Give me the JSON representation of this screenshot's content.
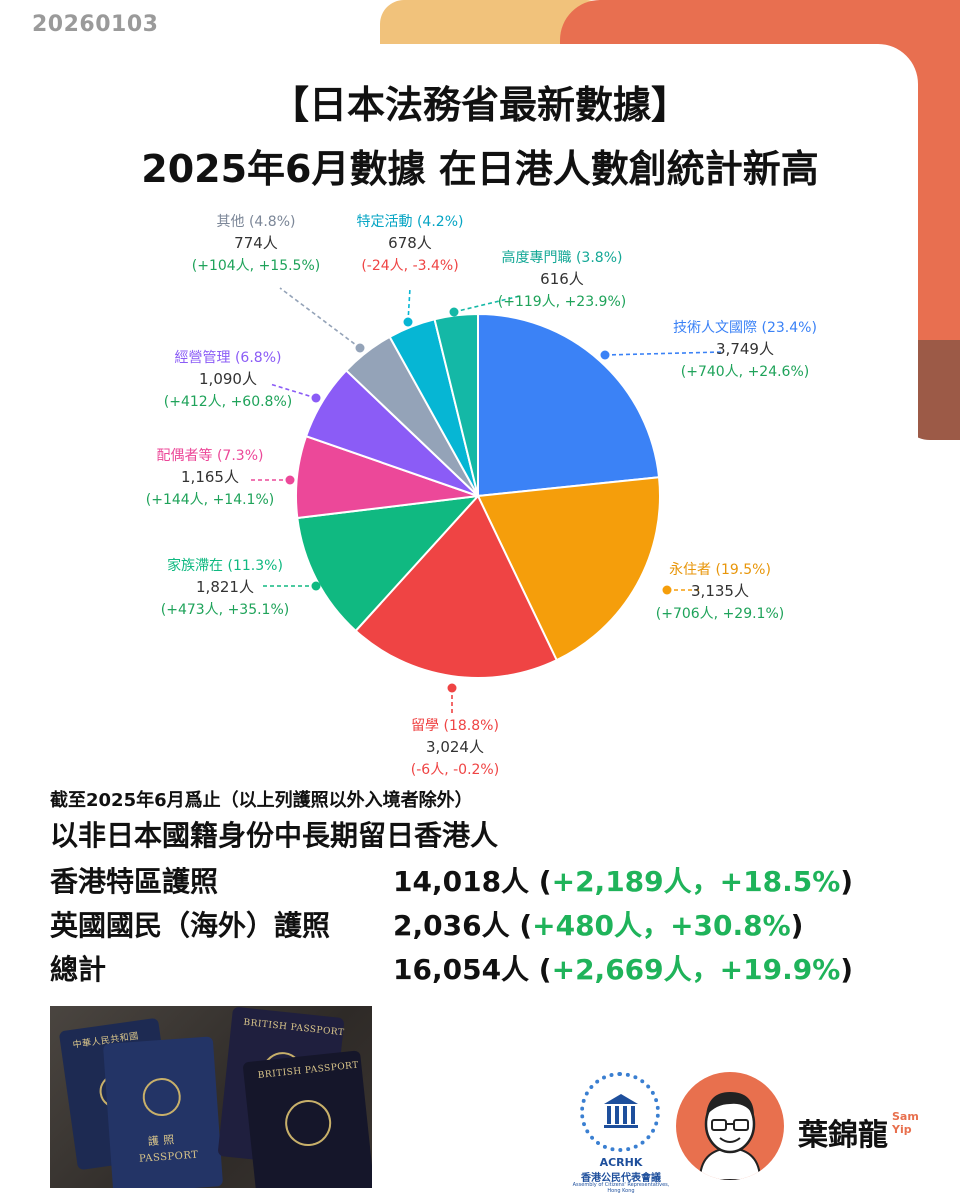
{
  "date_stamp": "20260103",
  "title_line_1": "【日本法務省最新數據】",
  "title_line_2": "2025年6月數據 在日港人數創統計新高",
  "chart_data": {
    "type": "pie",
    "title": "",
    "slices": [
      {
        "name": "技術人文國際",
        "percent_label": "23.4%",
        "value": 3749,
        "count_label": "3,749人",
        "change_label": "(+740人, +24.6%)",
        "color": "#3b82f6",
        "label_color": "#3b82f6",
        "change_color": "#1fa35a"
      },
      {
        "name": "永住者",
        "percent_label": "19.5%",
        "value": 3135,
        "count_label": "3,135人",
        "change_label": "(+706人, +29.1%)",
        "color": "#f59e0b",
        "label_color": "#e8960a",
        "change_color": "#1fa35a"
      },
      {
        "name": "留學",
        "percent_label": "18.8%",
        "value": 3024,
        "count_label": "3,024人",
        "change_label": "(-6人, -0.2%)",
        "color": "#ef4444",
        "label_color": "#ef4444",
        "change_color": "#ef4444"
      },
      {
        "name": "家族滯在",
        "percent_label": "11.3%",
        "value": 1821,
        "count_label": "1,821人",
        "change_label": "(+473人, +35.1%)",
        "color": "#10b981",
        "label_color": "#10b981",
        "change_color": "#1fa35a"
      },
      {
        "name": "配偶者等",
        "percent_label": "7.3%",
        "value": 1165,
        "count_label": "1,165人",
        "change_label": "(+144人, +14.1%)",
        "color": "#ec4899",
        "label_color": "#ec4899",
        "change_color": "#1fa35a"
      },
      {
        "name": "經營管理",
        "percent_label": "6.8%",
        "value": 1090,
        "count_label": "1,090人",
        "change_label": "(+412人, +60.8%)",
        "color": "#8b5cf6",
        "label_color": "#8b5cf6",
        "change_color": "#1fa35a"
      },
      {
        "name": "其他",
        "percent_label": "4.8%",
        "value": 774,
        "count_label": "774人",
        "change_label": "(+104人, +15.5%)",
        "color": "#94a3b8",
        "label_color": "#7c8798",
        "change_color": "#1fa35a"
      },
      {
        "name": "特定活動",
        "percent_label": "4.2%",
        "value": 678,
        "count_label": "678人",
        "change_label": "(-24人, -3.4%)",
        "color": "#06b6d4",
        "label_color": "#06a5c4",
        "change_color": "#ef4444"
      },
      {
        "name": "高度專門職",
        "percent_label": "3.8%",
        "value": 616,
        "count_label": "616人",
        "change_label": "(+119人, +23.9%)",
        "color": "#14b8a6",
        "label_color": "#14a896",
        "change_color": "#1fa35a"
      }
    ]
  },
  "note_small": "截至2025年6月爲止（以上列護照以外入境者除外）",
  "note_heading": "以非日本國籍身份中長期留日香港人",
  "summary_rows": [
    {
      "label": "香港特區護照",
      "count": "14,018人",
      "open": " (",
      "change_count": "+2,189人",
      "sep": "，",
      "change_pct": "+18.5%",
      "close": ")"
    },
    {
      "label": "英國國民（海外）護照",
      "count": "2,036人",
      "open": " (",
      "change_count": "+480人",
      "sep": "，",
      "change_pct": "+30.8%",
      "close": ")"
    },
    {
      "label": "總計",
      "count": "16,054人",
      "open": " (",
      "change_count": "+2,669人",
      "sep": "，",
      "change_pct": "+19.9%",
      "close": ")"
    }
  ],
  "photo": {
    "passport_1_text": "中華人民共和國",
    "passport_2_text": "PASSPORT",
    "passport_2_zh": "護 照",
    "passport_3_text": "BRITISH PASSPORT",
    "passport_4_text": "BRITISH PASSPORT"
  },
  "logo": {
    "abbr": "ACRHK",
    "zh": "香港公民代表會議",
    "en": "Assembly of Citizens' Representatives, Hong Kong",
    "color": "#1e4f9c"
  },
  "author": {
    "name_zh": "葉錦龍",
    "name_en_1": "Sam",
    "name_en_2": "Yip"
  },
  "colors": {
    "accent_orange": "#e86f50",
    "accent_yellow": "#f1c27b",
    "accent_brown": "#9c5a47",
    "positive_green": "#1fb35a"
  }
}
